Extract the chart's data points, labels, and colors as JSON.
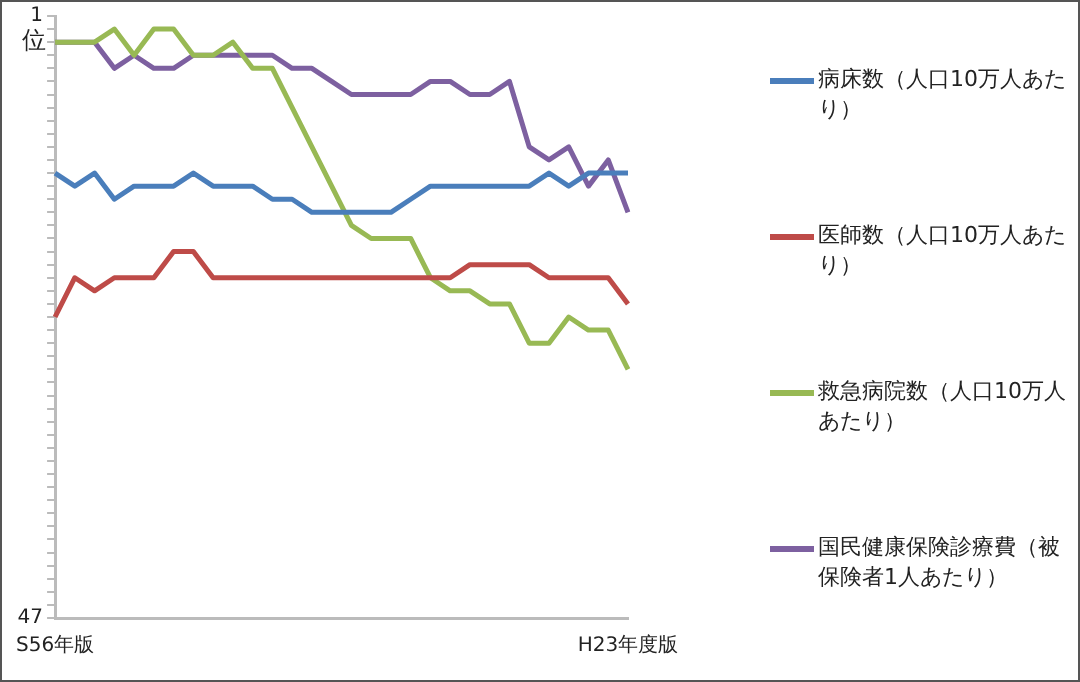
{
  "chart_data": {
    "type": "line",
    "ylabel": "位",
    "categories": [
      "S56年版",
      null,
      null,
      null,
      null,
      null,
      null,
      null,
      null,
      null,
      null,
      null,
      null,
      null,
      null,
      null,
      null,
      null,
      null,
      null,
      null,
      null,
      null,
      null,
      null,
      null,
      null,
      null,
      null,
      "H23年度版"
    ],
    "series": [
      {
        "name": "病床数（人口10万人あたり）",
        "color": "#4a7ebb",
        "values": [
          13,
          14,
          13,
          15,
          14,
          14,
          14,
          13,
          14,
          14,
          14,
          15,
          15,
          16,
          16,
          16,
          16,
          16,
          15,
          14,
          14,
          14,
          14,
          14,
          14,
          13,
          14,
          13,
          13,
          13
        ]
      },
      {
        "name": "医師数（人口10万人あたり）",
        "color": "#be4b48",
        "values": [
          24,
          21,
          22,
          21,
          21,
          21,
          19,
          19,
          21,
          21,
          21,
          21,
          21,
          21,
          21,
          21,
          21,
          21,
          21,
          21,
          21,
          20,
          20,
          20,
          20,
          21,
          21,
          21,
          21,
          23
        ]
      },
      {
        "name": "救急病院数（人口10万人あたり）",
        "color": "#98b954",
        "values": [
          3,
          3,
          3,
          2,
          4,
          2,
          2,
          4,
          4,
          3,
          5,
          5,
          8,
          11,
          14,
          17,
          18,
          18,
          18,
          21,
          22,
          22,
          23,
          23,
          26,
          26,
          24,
          25,
          25,
          28
        ]
      },
      {
        "name": "国民健康保険診療費（被保険者1人あたり）",
        "color": "#7d60a0",
        "values": [
          3,
          3,
          3,
          5,
          4,
          5,
          5,
          4,
          4,
          4,
          4,
          4,
          5,
          5,
          6,
          7,
          7,
          7,
          7,
          6,
          6,
          7,
          7,
          6,
          11,
          12,
          11,
          14,
          12,
          16
        ]
      }
    ],
    "ylim": [
      47,
      1
    ],
    "yticks": [
      1,
      {
        "value": 2,
        "label": null
      },
      {
        "value": 3,
        "label": null
      },
      {
        "value": 4,
        "label": null
      },
      {
        "value": 5,
        "label": null
      },
      {
        "value": 6,
        "label": null
      },
      {
        "value": 7,
        "label": null
      },
      {
        "value": 8,
        "label": null
      },
      {
        "value": 9,
        "label": null
      },
      {
        "value": 10,
        "label": null
      },
      {
        "value": 11,
        "label": null
      },
      {
        "value": 12,
        "label": null
      },
      {
        "value": 13,
        "label": null
      },
      {
        "value": 14,
        "label": null
      },
      {
        "value": 15,
        "label": null
      },
      {
        "value": 16,
        "label": null
      },
      {
        "value": 17,
        "label": null
      },
      {
        "value": 18,
        "label": null
      },
      {
        "value": 19,
        "label": null
      },
      {
        "value": 20,
        "label": null
      },
      {
        "value": 21,
        "label": null
      },
      {
        "value": 22,
        "label": null
      },
      {
        "value": 23,
        "label": null
      },
      {
        "value": 24,
        "label": null
      },
      {
        "value": 25,
        "label": null
      },
      {
        "value": 26,
        "label": null
      },
      {
        "value": 27,
        "label": null
      },
      {
        "value": 28,
        "label": null
      },
      {
        "value": 29,
        "label": null
      },
      {
        "value": 30,
        "label": null
      },
      {
        "value": 31,
        "label": null
      },
      {
        "value": 32,
        "label": null
      },
      {
        "value": 33,
        "label": null
      },
      {
        "value": 34,
        "label": null
      },
      {
        "value": 35,
        "label": null
      },
      {
        "value": 36,
        "label": null
      },
      {
        "value": 37,
        "label": null
      },
      {
        "value": 38,
        "label": null
      },
      {
        "value": 39,
        "label": null
      },
      {
        "value": 40,
        "label": null
      },
      {
        "value": 41,
        "label": null
      },
      {
        "value": 42,
        "label": null
      },
      {
        "value": 43,
        "label": null
      },
      {
        "value": 44,
        "label": null
      },
      {
        "value": 45,
        "label": null
      },
      {
        "value": 46,
        "label": null
      },
      47
    ],
    "grid": false,
    "legend": "right",
    "marker": "none"
  }
}
